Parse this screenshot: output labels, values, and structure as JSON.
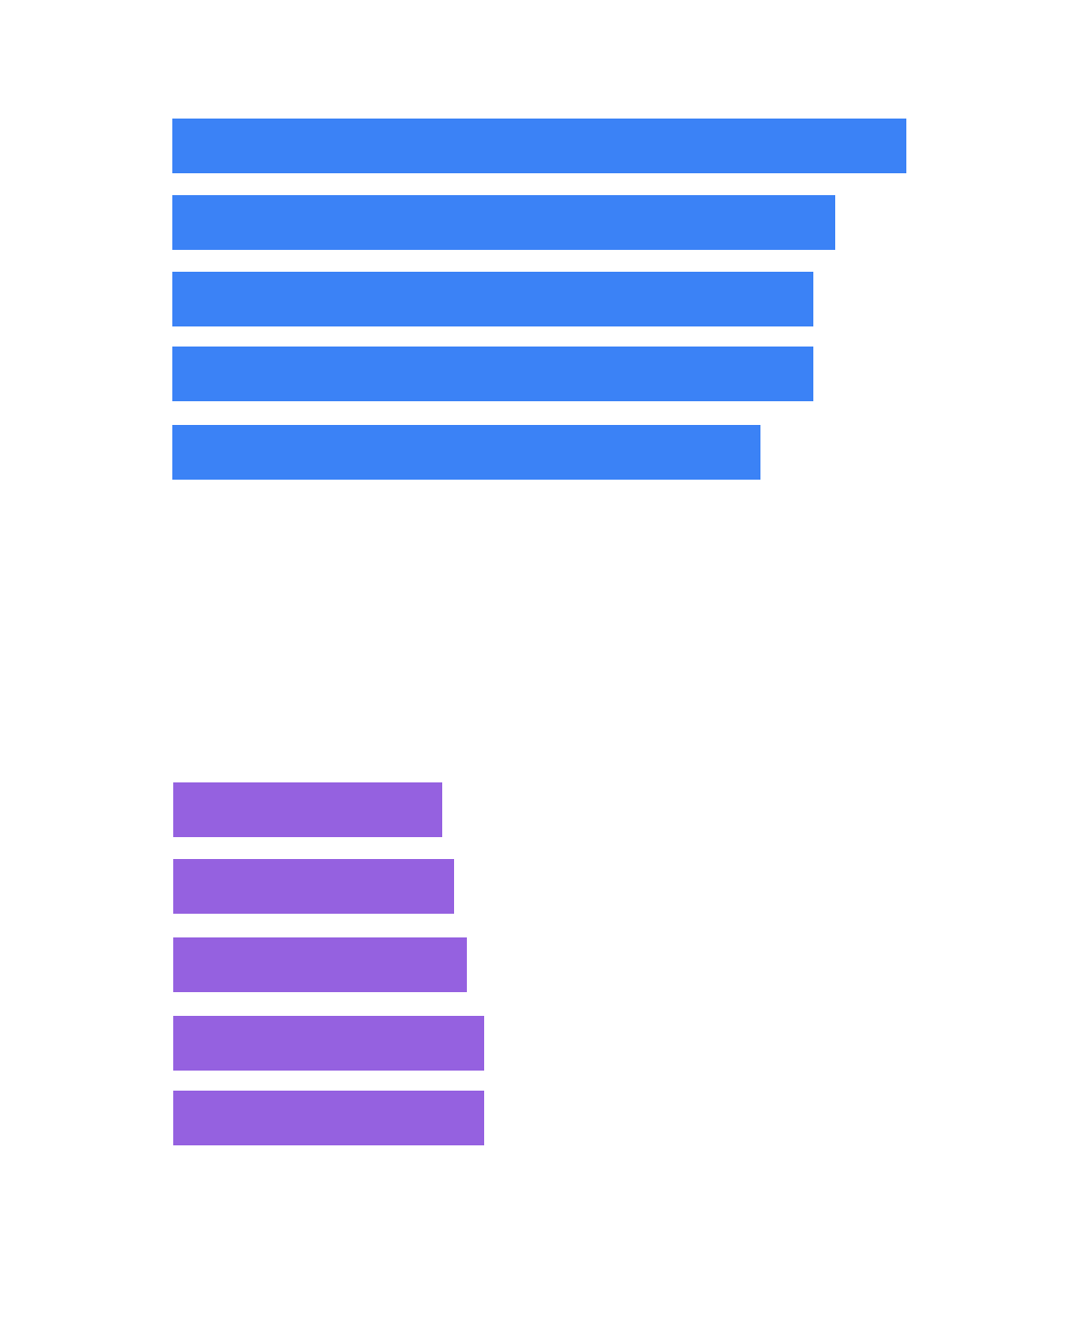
{
  "chart_data": [
    {
      "type": "bar",
      "orientation": "horizontal",
      "values": [
        1.0,
        0.903,
        0.873,
        0.873,
        0.801
      ],
      "xlim": [
        0,
        1
      ],
      "grid": false,
      "legend": "none",
      "color": "#3b82f6"
    },
    {
      "type": "bar",
      "orientation": "horizontal",
      "values": [
        0.366,
        0.383,
        0.4,
        0.423,
        0.423
      ],
      "xlim": [
        0,
        1
      ],
      "grid": false,
      "legend": "none",
      "color": "#9561e0"
    }
  ]
}
